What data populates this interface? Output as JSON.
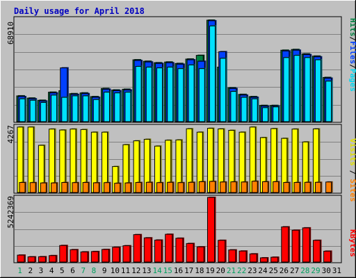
{
  "chart_data": {
    "type": "bar",
    "title": "Daily usage for April 2018",
    "days": [
      "1",
      "2",
      "3",
      "4",
      "5",
      "6",
      "7",
      "8",
      "9",
      "10",
      "11",
      "12",
      "13",
      "14",
      "15",
      "16",
      "17",
      "18",
      "19",
      "20",
      "21",
      "22",
      "23",
      "24",
      "25",
      "26",
      "27",
      "28",
      "29",
      "30",
      "31"
    ],
    "weekend_days": [
      "1",
      "7",
      "8",
      "14",
      "15",
      "21",
      "22",
      "28",
      "29"
    ],
    "panels": [
      {
        "id": "top",
        "max_label": "68910",
        "ymax": 68910,
        "legend": [
          "Pages",
          "Files",
          "Hits"
        ],
        "series": [
          {
            "name": "Hits",
            "color": "#008040",
            "values": [
              17500,
              16000,
              14500,
              20000,
              21000,
              19000,
              19500,
              17000,
              22500,
              21500,
              22000,
              42000,
              41000,
              40000,
              40500,
              39500,
              42500,
              45000,
              68910,
              37000,
              23000,
              18500,
              17000,
              11000,
              11000,
              48500,
              49000,
              46000,
              44500,
              30000,
              0
            ]
          },
          {
            "name": "Files",
            "color": "#0040FF",
            "values": [
              17000,
              15500,
              14000,
              19500,
              36500,
              18500,
              19000,
              16500,
              22000,
              21000,
              21500,
              41500,
              40500,
              39500,
              40000,
              39000,
              42000,
              41000,
              68500,
              47500,
              22500,
              18000,
              16500,
              10500,
              10500,
              48000,
              48500,
              45500,
              44000,
              29500,
              0
            ]
          },
          {
            "name": "Pages",
            "color": "#00E0FF",
            "values": [
              15500,
              14500,
              13000,
              18000,
              16500,
              17500,
              17500,
              15000,
              20000,
              19500,
              20000,
              37500,
              37000,
              36500,
              37000,
              36000,
              38500,
              36000,
              65000,
              43000,
              20500,
              16500,
              15500,
              9500,
              10000,
              43500,
              45000,
              43500,
              42000,
              27500,
              0
            ]
          }
        ]
      },
      {
        "id": "middle",
        "max_label": "4267",
        "ymax": 4267,
        "legend": [
          "Sites",
          "/",
          "Visits"
        ],
        "series": [
          {
            "name": "Visits",
            "color": "#FFFF00",
            "values": [
              4230,
              4230,
              3050,
              4100,
              4040,
              4100,
              4070,
              3900,
              3900,
              1680,
              3090,
              3340,
              3440,
              3000,
              3380,
              3400,
              4120,
              3900,
              4150,
              4110,
              4020,
              3900,
              4230,
              3550,
              4130,
              3500,
              4100,
              3270,
              4110,
              0,
              0
            ]
          },
          {
            "name": "Sites",
            "color": "#FF8000",
            "values": [
              650,
              640,
              620,
              620,
              650,
              640,
              650,
              630,
              640,
              600,
              620,
              650,
              660,
              640,
              660,
              640,
              660,
              700,
              720,
              680,
              690,
              680,
              730,
              700,
              700,
              650,
              650,
              660,
              660,
              680,
              0
            ]
          }
        ]
      },
      {
        "id": "bottom",
        "max_label": "5242369",
        "ymax": 5242369,
        "legend": [
          "KBytes"
        ],
        "series": [
          {
            "name": "KBytes",
            "color": "#FF0000",
            "values": [
              560000,
              420000,
              430000,
              520000,
              1340000,
              1000000,
              820000,
              850000,
              1020000,
              1200000,
              1320000,
              2220000,
              1960000,
              1780000,
              2250000,
              1930000,
              1500000,
              1230000,
              5242369,
              1760000,
              980000,
              890000,
              660000,
              340000,
              390000,
              2850000,
              2580000,
              2770000,
              1760000,
              880000,
              0
            ]
          }
        ]
      }
    ]
  }
}
